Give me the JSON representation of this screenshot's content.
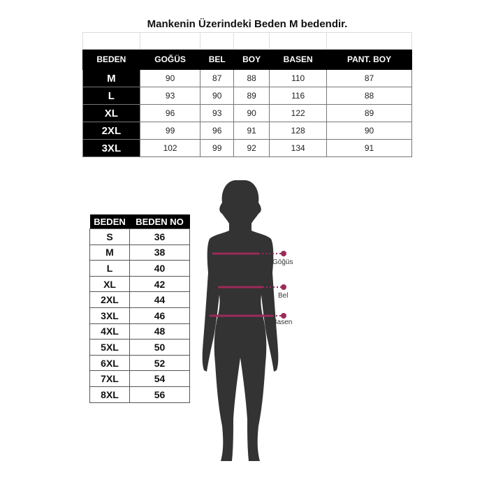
{
  "main_table": {
    "title": "Mankenin Üzerindeki Beden M bedendir.",
    "headers": [
      "BEDEN",
      "GOĞÜS",
      "BEL",
      "BOY",
      "BASEN",
      "PANT. BOY"
    ],
    "rows": [
      [
        "M",
        "90",
        "87",
        "88",
        "110",
        "87"
      ],
      [
        "L",
        "93",
        "90",
        "89",
        "116",
        "88"
      ],
      [
        "XL",
        "96",
        "93",
        "90",
        "122",
        "89"
      ],
      [
        "2XL",
        "99",
        "96",
        "91",
        "128",
        "90"
      ],
      [
        "3XL",
        "102",
        "99",
        "92",
        "134",
        "91"
      ]
    ]
  },
  "size_no_table": {
    "headers": [
      "BEDEN",
      "BEDEN NO"
    ],
    "rows": [
      [
        "S",
        "36"
      ],
      [
        "M",
        "38"
      ],
      [
        "L",
        "40"
      ],
      [
        "XL",
        "42"
      ],
      [
        "2XL",
        "44"
      ],
      [
        "3XL",
        "46"
      ],
      [
        "4XL",
        "48"
      ],
      [
        "5XL",
        "50"
      ],
      [
        "6XL",
        "52"
      ],
      [
        "7XL",
        "54"
      ],
      [
        "8XL",
        "56"
      ]
    ]
  },
  "figure": {
    "labels": [
      "Göğüs",
      "Bel",
      "Basen"
    ],
    "silhouette_color": "#333333",
    "measure_color": "#9c2a5a"
  }
}
